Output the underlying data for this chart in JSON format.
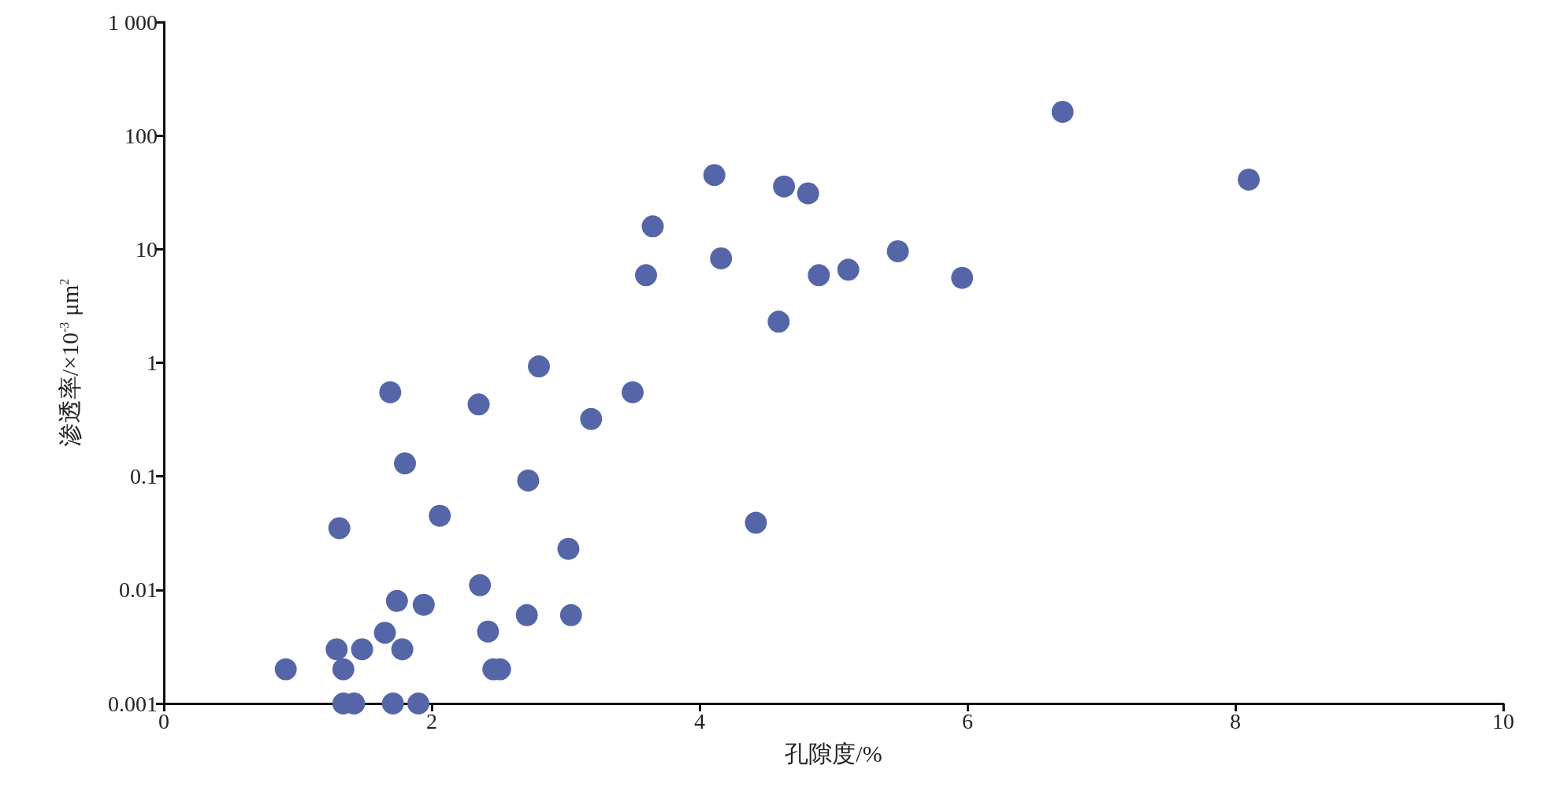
{
  "chart_data": {
    "type": "scatter",
    "xlabel": "孔隙度/%",
    "ylabel": "渗透率/×10$^{-3}$ μm$^{2}$",
    "log": "y",
    "grid": false,
    "marker": "circle",
    "xlim": [
      0,
      10
    ],
    "xticks": [
      0,
      2,
      4,
      6,
      8,
      10
    ],
    "ylim": [
      0.001,
      1000
    ],
    "yticks": [
      {
        "value": 0.001,
        "label": "0.001"
      },
      {
        "value": 0.01,
        "label": "0.01"
      },
      {
        "value": 0.1,
        "label": "0.1"
      },
      {
        "value": 1,
        "label": "1"
      },
      {
        "value": 10,
        "label": "10"
      },
      {
        "value": 100,
        "label": "100"
      },
      {
        "value": 1000,
        "label": "1 000"
      }
    ],
    "series": [
      {
        "color": "#5566a8",
        "x": [
          0.91,
          1.29,
          1.31,
          1.34,
          1.34,
          1.42,
          1.48,
          1.65,
          1.69,
          1.71,
          1.74,
          1.78,
          1.8,
          1.9,
          1.94,
          2.06,
          2.35,
          2.36,
          2.42,
          2.46,
          2.51,
          2.71,
          2.72,
          2.8,
          3.02,
          3.04,
          3.19,
          3.5,
          3.6,
          3.65,
          4.11,
          4.16,
          4.42,
          4.59,
          4.63,
          4.81,
          4.89,
          5.11,
          5.48,
          5.96,
          6.71,
          8.1
        ],
        "values": [
          0.002,
          0.003,
          0.035,
          0.002,
          0.001,
          0.001,
          0.003,
          0.0042,
          0.55,
          0.001,
          0.008,
          0.003,
          0.13,
          0.001,
          0.0074,
          0.045,
          0.43,
          0.011,
          0.0043,
          0.002,
          0.002,
          0.006,
          0.092,
          0.93,
          0.023,
          0.006,
          0.32,
          0.55,
          5.9,
          15.9,
          45,
          8.3,
          0.039,
          2.3,
          35.7,
          31,
          5.9,
          6.6,
          9.6,
          5.6,
          162,
          41
        ]
      }
    ]
  }
}
